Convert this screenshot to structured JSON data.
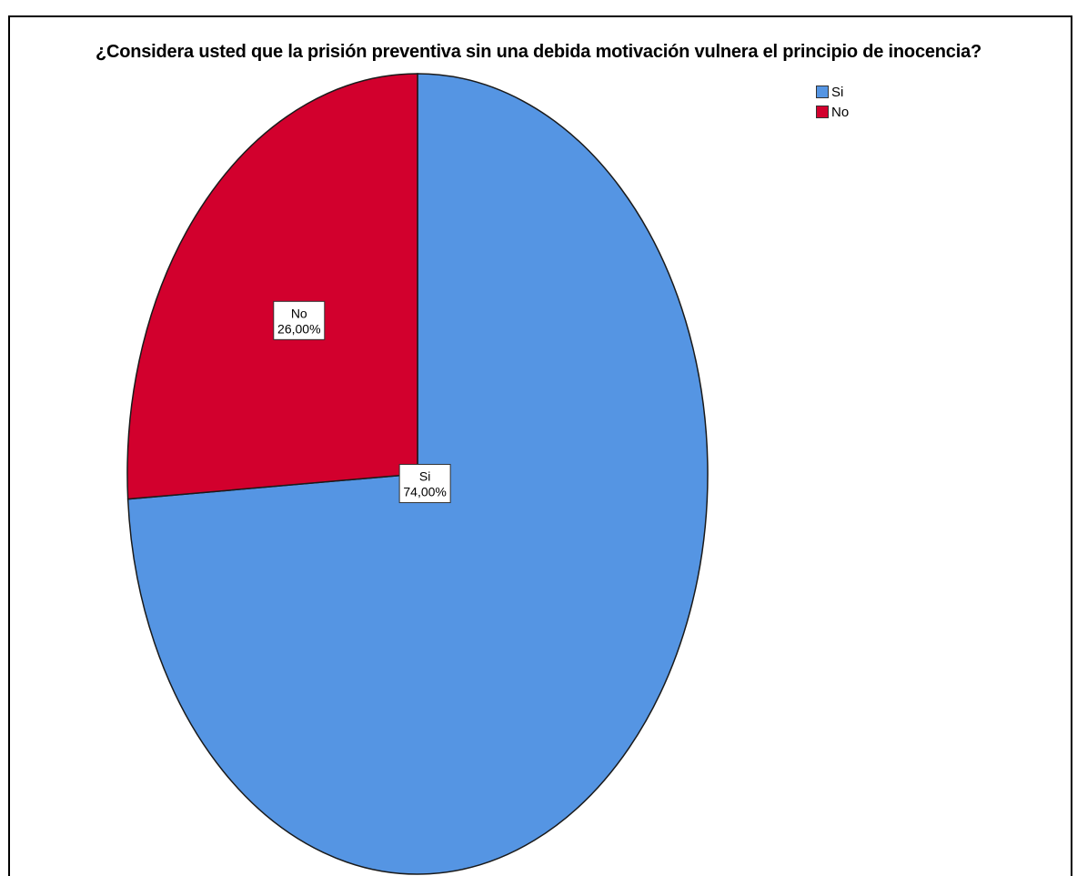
{
  "chart_data": {
    "type": "pie",
    "title": "¿Considera usted que la prisión preventiva sin una debida motivación vulnera el principio de inocencia?",
    "categories": [
      "Si",
      "No"
    ],
    "values": [
      74.0,
      26.0
    ],
    "value_labels": [
      "74,00%",
      "26,00%"
    ],
    "colors": [
      "#5595e3",
      "#d2002d"
    ],
    "legend_position": "top-right",
    "start_angle_deg": 0,
    "direction": "clockwise"
  },
  "legend": {
    "items": [
      {
        "label": "Si",
        "color": "#5595e3"
      },
      {
        "label": "No",
        "color": "#d2002d"
      }
    ]
  }
}
